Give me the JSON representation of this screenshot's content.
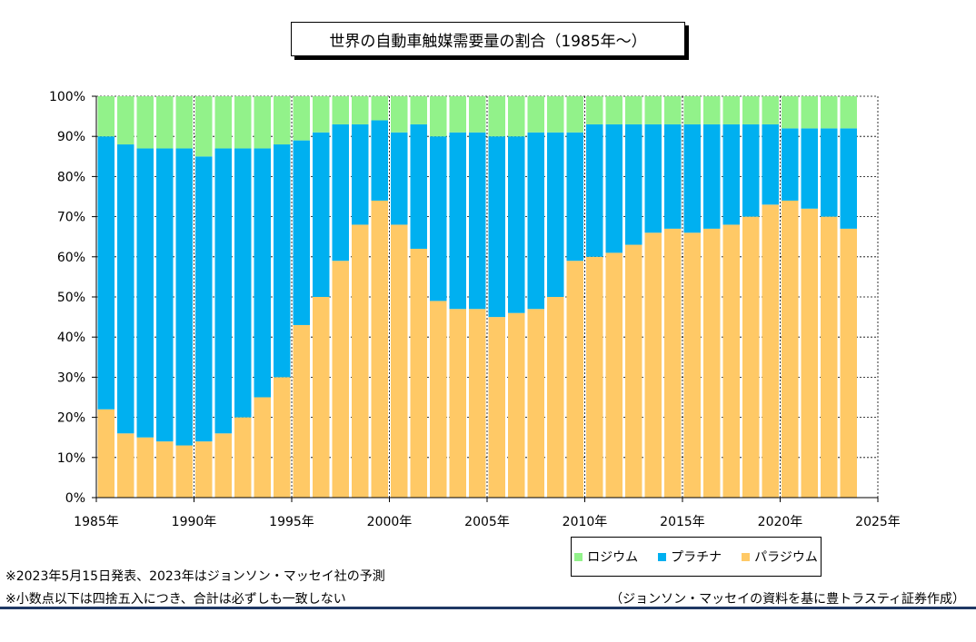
{
  "chart_data": {
    "type": "bar",
    "stacked": true,
    "title": "世界の自動車触媒需要量の割合（1985年～）",
    "x": [
      1985,
      1986,
      1987,
      1988,
      1989,
      1990,
      1991,
      1992,
      1993,
      1994,
      1995,
      1996,
      1997,
      1998,
      1999,
      2000,
      2001,
      2002,
      2003,
      2004,
      2005,
      2006,
      2007,
      2008,
      2009,
      2010,
      2011,
      2012,
      2013,
      2014,
      2015,
      2016,
      2017,
      2018,
      2019,
      2020,
      2021,
      2022,
      2023
    ],
    "xticks": [
      "1985年",
      "1990年",
      "1995年",
      "2000年",
      "2005年",
      "2010年",
      "2015年",
      "2020年",
      "2025年"
    ],
    "xtick_values": [
      1985,
      1990,
      1995,
      2000,
      2005,
      2010,
      2015,
      2020,
      2025
    ],
    "yticks": [
      "0%",
      "10%",
      "20%",
      "30%",
      "40%",
      "50%",
      "60%",
      "70%",
      "80%",
      "90%",
      "100%"
    ],
    "ylim": [
      0,
      100
    ],
    "series": [
      {
        "name": "パラジウム",
        "color": "#ffc966",
        "values": [
          22,
          16,
          15,
          14,
          13,
          14,
          16,
          20,
          25,
          30,
          43,
          50,
          59,
          68,
          74,
          68,
          62,
          49,
          47,
          47,
          45,
          46,
          47,
          50,
          59,
          60,
          61,
          63,
          66,
          67,
          66,
          67,
          68,
          70,
          73,
          74,
          72,
          70,
          67
        ]
      },
      {
        "name": "プラチナ",
        "color": "#00b0f0",
        "values": [
          68,
          72,
          72,
          73,
          74,
          71,
          71,
          67,
          62,
          58,
          46,
          41,
          34,
          25,
          20,
          23,
          31,
          41,
          44,
          44,
          45,
          44,
          44,
          41,
          32,
          33,
          32,
          30,
          27,
          26,
          27,
          26,
          25,
          23,
          20,
          18,
          20,
          22,
          25
        ]
      },
      {
        "name": "ロジウム",
        "color": "#92f28a",
        "values": [
          10,
          12,
          13,
          13,
          13,
          15,
          13,
          13,
          13,
          12,
          11,
          9,
          7,
          7,
          6,
          9,
          7,
          10,
          9,
          9,
          10,
          10,
          9,
          9,
          9,
          7,
          7,
          7,
          7,
          7,
          7,
          7,
          7,
          7,
          7,
          8,
          8,
          8,
          8
        ]
      }
    ],
    "legend_order": [
      "ロジウム",
      "プラチナ",
      "パラジウム"
    ],
    "grid": "horizontal dashed",
    "legend_position": "bottom-right"
  },
  "notes": [
    "※2023年5月15日発表、2023年はジョンソン・マッセイ社の予測",
    "※小数点以下は四捨五入につき、合計は必ずしも一致しない"
  ],
  "source": "（ジョンソン・マッセイの資料を基に豊トラスティ証券作成）",
  "colors": {
    "accent_line": "#1f3864",
    "grid": "#000000"
  }
}
